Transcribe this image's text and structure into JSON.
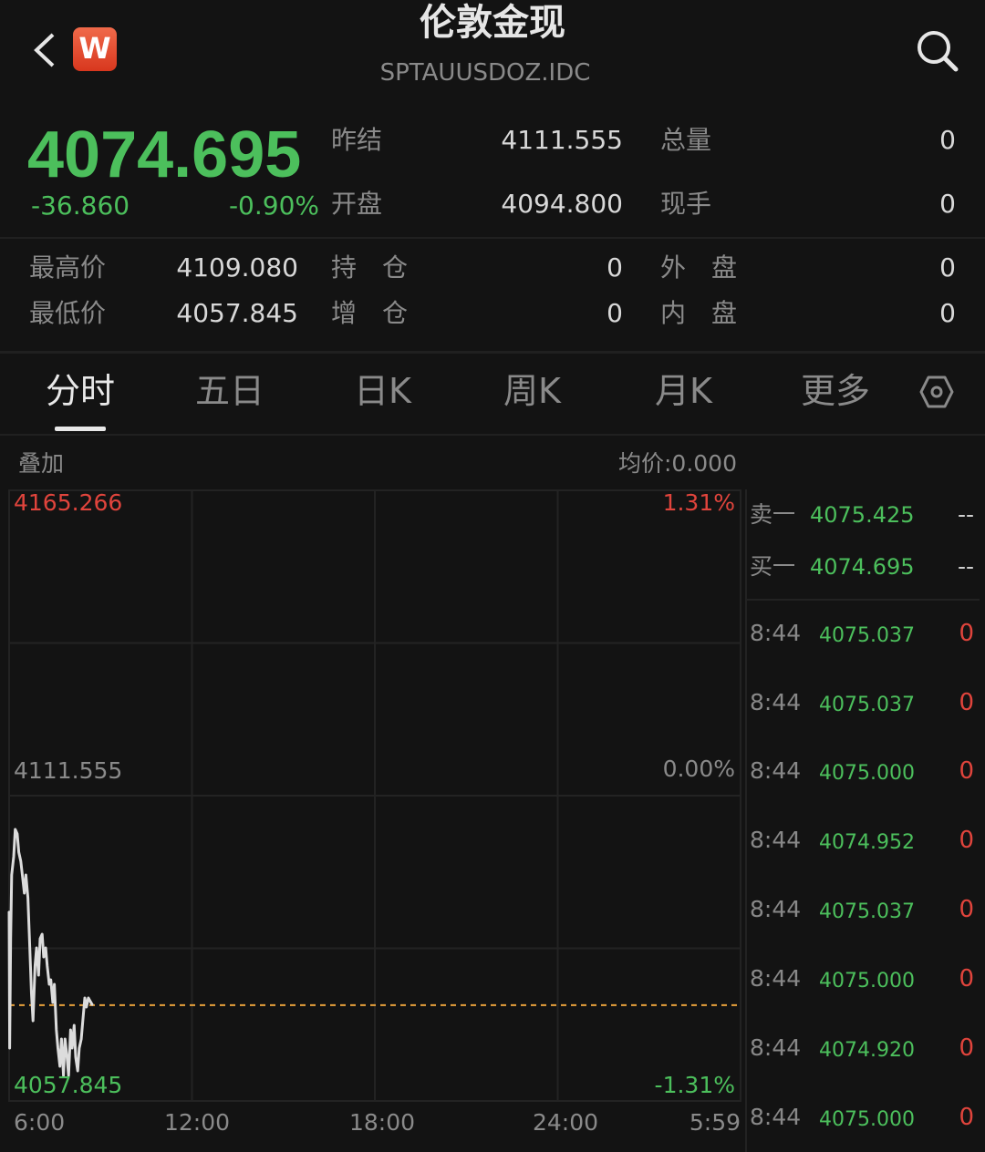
{
  "header": {
    "title": "伦敦金现",
    "code": "SPTAUUSDOZ.IDC",
    "app_icon_letter": "W",
    "icons": {
      "back": "chevron-left-icon",
      "search": "search-icon",
      "app": "app-logo-icon",
      "settings": "hexagon-settings-icon"
    }
  },
  "quote": {
    "price": "4074.695",
    "change": "-36.860",
    "change_pct": "-0.90%",
    "fields": [
      {
        "label": "昨结",
        "value": "4111.555"
      },
      {
        "label": "总量",
        "value": "0"
      },
      {
        "label": "开盘",
        "value": "4094.800"
      },
      {
        "label": "现手",
        "value": "0"
      },
      {
        "label": "最高价",
        "value": "4109.080"
      },
      {
        "label": "持　仓",
        "value": "0"
      },
      {
        "label": "外　盘",
        "value": "0"
      },
      {
        "label": "最低价",
        "value": "4057.845"
      },
      {
        "label": "增　仓",
        "value": "0"
      },
      {
        "label": "内　盘",
        "value": "0"
      }
    ]
  },
  "tabs": [
    {
      "label": "分时",
      "active": true
    },
    {
      "label": "五日"
    },
    {
      "label": "日K"
    },
    {
      "label": "周K"
    },
    {
      "label": "月K"
    },
    {
      "label": "更多"
    }
  ],
  "chart_bar": {
    "overlay": "叠加",
    "avg_price": "均价:0.000"
  },
  "colors": {
    "up": "#e0443c",
    "down": "#4cbf5c",
    "line": "#dcdcdc",
    "dashed": "#e8a23c",
    "background": "#131313"
  },
  "chart_data": {
    "type": "line",
    "ylim": [
      4057.845,
      4165.266
    ],
    "y_ticks_left": [
      "4165.266",
      "4111.555",
      "4057.845"
    ],
    "y_ticks_right": [
      "1.31%",
      "0.00%",
      "-1.31%"
    ],
    "x_ticks": [
      "6:00",
      "12:00",
      "18:00",
      "24:00",
      "5:59"
    ],
    "reference_price": 4111.555,
    "current_price": 4074.695,
    "points": [
      [
        "6:00",
        4091.2
      ],
      [
        "6:01",
        4067.14
      ],
      [
        "6:03",
        4086.38
      ],
      [
        "6:05",
        4097.6
      ],
      [
        "6:09",
        4100.81
      ],
      [
        "6:12",
        4105.62
      ],
      [
        "6:16",
        4104.82
      ],
      [
        "6:19",
        4101.61
      ],
      [
        "6:23",
        4100.01
      ],
      [
        "6:26",
        4097.6
      ],
      [
        "6:30",
        4094.4
      ],
      [
        "6:33",
        4097.6
      ],
      [
        "6:37",
        4093.6
      ],
      [
        "6:40",
        4086.38
      ],
      [
        "6:44",
        4076.76
      ],
      [
        "6:47",
        4071.95
      ],
      [
        "6:51",
        4081.57
      ],
      [
        "6:54",
        4084.78
      ],
      [
        "6:58",
        4079.97
      ],
      [
        "7:01",
        4086.38
      ],
      [
        "7:05",
        4087.18
      ],
      [
        "7:08",
        4083.18
      ],
      [
        "7:12",
        4084.78
      ],
      [
        "7:15",
        4081.57
      ],
      [
        "7:19",
        4078.37
      ],
      [
        "7:22",
        4079.17
      ],
      [
        "7:26",
        4075.16
      ],
      [
        "7:29",
        4078.37
      ],
      [
        "7:33",
        4070.35
      ],
      [
        "7:36",
        4067.14
      ],
      [
        "7:40",
        4063.94
      ],
      [
        "7:43",
        4068.75
      ],
      [
        "7:47",
        4062.34
      ],
      [
        "7:50",
        4068.75
      ],
      [
        "7:54",
        4065.54
      ],
      [
        "7:57",
        4062.34
      ],
      [
        "8:01",
        4070.35
      ],
      [
        "8:04",
        4067.14
      ],
      [
        "8:08",
        4071.15
      ],
      [
        "8:11",
        4065.54
      ],
      [
        "8:15",
        4063.14
      ],
      [
        "8:18",
        4067.14
      ],
      [
        "8:22",
        4068.75
      ],
      [
        "8:25",
        4071.95
      ],
      [
        "8:29",
        4075.96
      ],
      [
        "8:32",
        4074.36
      ],
      [
        "8:36",
        4075.96
      ],
      [
        "8:44",
        4074.7
      ]
    ]
  },
  "order_book": [
    {
      "label": "卖一",
      "price": "4075.425",
      "volume": "--"
    },
    {
      "label": "买一",
      "price": "4074.695",
      "volume": "--"
    }
  ],
  "ticks": [
    {
      "time": "8:44",
      "price": "4075.037",
      "volume": "0"
    },
    {
      "time": "8:44",
      "price": "4075.037",
      "volume": "0"
    },
    {
      "time": "8:44",
      "price": "4075.000",
      "volume": "0"
    },
    {
      "time": "8:44",
      "price": "4074.952",
      "volume": "0"
    },
    {
      "time": "8:44",
      "price": "4075.037",
      "volume": "0"
    },
    {
      "time": "8:44",
      "price": "4075.000",
      "volume": "0"
    },
    {
      "time": "8:44",
      "price": "4074.920",
      "volume": "0"
    },
    {
      "time": "8:44",
      "price": "4075.000",
      "volume": "0"
    }
  ]
}
